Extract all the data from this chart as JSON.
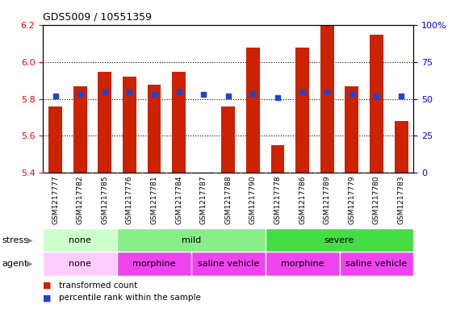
{
  "title": "GDS5009 / 10551359",
  "samples": [
    "GSM1217777",
    "GSM1217782",
    "GSM1217785",
    "GSM1217776",
    "GSM1217781",
    "GSM1217784",
    "GSM1217787",
    "GSM1217788",
    "GSM1217790",
    "GSM1217778",
    "GSM1217786",
    "GSM1217789",
    "GSM1217779",
    "GSM1217780",
    "GSM1217783"
  ],
  "transformed_count": [
    5.76,
    5.87,
    5.95,
    5.92,
    5.88,
    5.95,
    5.4,
    5.76,
    6.08,
    5.55,
    6.08,
    6.2,
    5.87,
    6.15,
    5.68
  ],
  "percentile_rank": [
    52,
    54,
    55,
    55,
    53,
    55,
    53,
    52,
    54,
    51,
    55,
    55,
    54,
    52,
    52
  ],
  "ylim_left": [
    5.4,
    6.2
  ],
  "ylim_right": [
    0,
    100
  ],
  "yticks_left": [
    5.4,
    5.6,
    5.8,
    6.0,
    6.2
  ],
  "yticks_right": [
    0,
    25,
    50,
    75,
    100
  ],
  "bar_bottom": 5.4,
  "bar_color": "#cc2200",
  "dot_color": "#2244cc",
  "stress_groups": [
    {
      "label": "none",
      "start": 0,
      "end": 3,
      "color": "#ccffcc"
    },
    {
      "label": "mild",
      "start": 3,
      "end": 9,
      "color": "#88ee88"
    },
    {
      "label": "severe",
      "start": 9,
      "end": 15,
      "color": "#44dd44"
    }
  ],
  "agent_groups": [
    {
      "label": "none",
      "start": 0,
      "end": 3,
      "color": "#ffccff"
    },
    {
      "label": "morphine",
      "start": 3,
      "end": 6,
      "color": "#ee44ee"
    },
    {
      "label": "saline vehicle",
      "start": 6,
      "end": 9,
      "color": "#ee44ee"
    },
    {
      "label": "morphine",
      "start": 9,
      "end": 12,
      "color": "#ee44ee"
    },
    {
      "label": "saline vehicle",
      "start": 12,
      "end": 15,
      "color": "#ee44ee"
    }
  ],
  "stress_label": "stress",
  "agent_label": "agent",
  "legend_red_label": "transformed count",
  "legend_blue_label": "percentile rank within the sample"
}
